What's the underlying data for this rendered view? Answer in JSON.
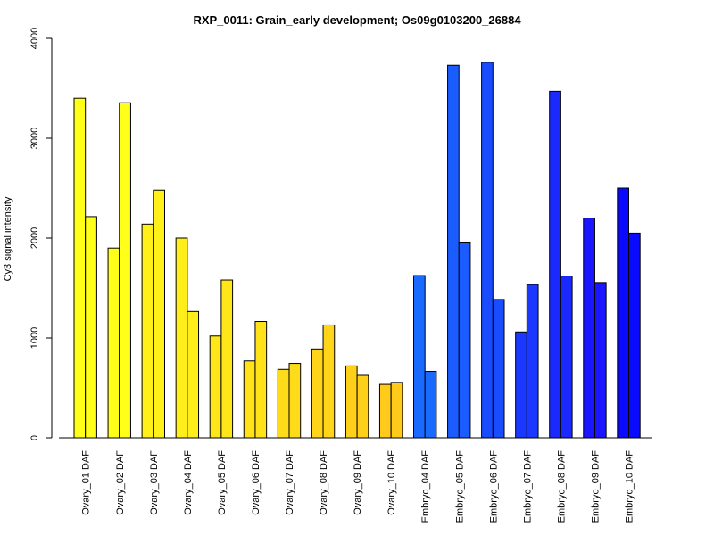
{
  "chart_data": {
    "type": "bar",
    "title": "RXP_0011: Grain_early development; Os09g0103200_26884",
    "ylabel": "Cy3 signal intensity",
    "xlabel": "",
    "ylim": [
      0,
      4000
    ],
    "yticks": [
      0,
      1000,
      2000,
      3000,
      4000
    ],
    "grid": false,
    "categories": [
      "Ovary_01 DAF",
      "Ovary_02 DAF",
      "Ovary_03 DAF",
      "Ovary_04 DAF",
      "Ovary_05 DAF",
      "Ovary_06 DAF",
      "Ovary_07 DAF",
      "Ovary_08 DAF",
      "Ovary_09 DAF",
      "Ovary_10 DAF",
      "Embryo_04 DAF",
      "Embryo_05 DAF",
      "Embryo_06 DAF",
      "Embryo_07 DAF",
      "Embryo_08 DAF",
      "Embryo_09 DAF",
      "Embryo_10 DAF"
    ],
    "colors": [
      "#ffff19",
      "#ffff19",
      "#fff019",
      "#ffee19",
      "#ffe619",
      "#ffe219",
      "#ffdc19",
      "#ffd419",
      "#ffd019",
      "#ffca19",
      "#1a6aff",
      "#1a5cff",
      "#1a4cff",
      "#1a38ff",
      "#1a2aff",
      "#1a16ff",
      "#0a0aff"
    ],
    "series": [
      {
        "values": [
          3400,
          1900,
          2140,
          2000,
          1020,
          770,
          685,
          890,
          720,
          535,
          1625,
          3730,
          3760,
          1060,
          3470,
          2200,
          2500
        ]
      },
      {
        "values": [
          2215,
          3355,
          2480,
          1265,
          1580,
          1165,
          745,
          1130,
          625,
          555,
          665,
          1960,
          1385,
          1535,
          1620,
          1555,
          2050
        ]
      }
    ]
  }
}
